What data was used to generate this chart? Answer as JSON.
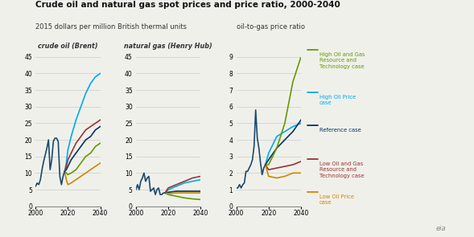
{
  "title": "Crude oil and natural gas spot prices and price ratio, 2000-2040",
  "subtitle_left": "2015 dollars per million British thermal units",
  "subtitle_right": "oil-to-gas price ratio",
  "label1": "crude oil (Brent)",
  "label2": "natural gas (Henry Hub)",
  "colors": {
    "high_oil_price": "#00AAEE",
    "reference": "#003366",
    "high_og_resource": "#669900",
    "low_og_resource": "#993333",
    "low_oil_price": "#CC8800"
  },
  "panel1_ylim": [
    0,
    45
  ],
  "panel2_ylim": [
    0,
    45
  ],
  "panel3_ylim": [
    0,
    9
  ],
  "panel1_yticks": [
    0,
    5,
    10,
    15,
    20,
    25,
    30,
    35,
    40,
    45
  ],
  "panel2_yticks": [
    0,
    5,
    10,
    15,
    20,
    25,
    30,
    35,
    40,
    45
  ],
  "panel3_yticks": [
    0,
    1,
    2,
    3,
    4,
    5,
    6,
    7,
    8,
    9
  ],
  "legend_entries": [
    {
      "label": "High Oil and Gas\nResource and\nTechnology case",
      "color": "#669900"
    },
    {
      "label": "High Oil Price\ncase",
      "color": "#00AAEE"
    },
    {
      "label": "Reference case",
      "color": "#003366"
    },
    {
      "label": "Low Oil and Gas\nResource and\nTechnology case",
      "color": "#993333"
    },
    {
      "label": "Low Oil Price\ncase",
      "color": "#CC8800"
    }
  ],
  "crude_oil": {
    "years_hist": [
      2000,
      2001,
      2002,
      2003,
      2004,
      2005,
      2006,
      2007,
      2008,
      2009,
      2010,
      2011,
      2012,
      2013,
      2014,
      2015,
      2016,
      2017,
      2018
    ],
    "vals_hist": [
      6.0,
      7.0,
      6.5,
      8.0,
      11.0,
      13.5,
      15.5,
      17.5,
      20.0,
      11.0,
      14.0,
      19.5,
      20.5,
      20.5,
      19.5,
      9.0,
      6.5,
      9.0,
      10.5
    ],
    "high_oil_price": {
      "years": [
        2018,
        2019,
        2020,
        2022,
        2025,
        2028,
        2031,
        2034,
        2037,
        2040
      ],
      "vals": [
        10.5,
        13,
        17,
        21,
        26,
        30,
        34,
        37,
        39,
        40
      ]
    },
    "reference": {
      "years": [
        2018,
        2019,
        2020,
        2022,
        2025,
        2028,
        2031,
        2034,
        2037,
        2040
      ],
      "vals": [
        10.5,
        11,
        12,
        14,
        16,
        18,
        20,
        21,
        23,
        24
      ]
    },
    "high_og_resource": {
      "years": [
        2018,
        2019,
        2020,
        2022,
        2025,
        2028,
        2031,
        2034,
        2037,
        2040
      ],
      "vals": [
        10.5,
        10,
        9.5,
        10,
        11,
        13,
        15,
        16,
        18,
        19
      ]
    },
    "low_og_resource": {
      "years": [
        2018,
        2019,
        2020,
        2022,
        2025,
        2028,
        2031,
        2034,
        2037,
        2040
      ],
      "vals": [
        10.5,
        12,
        14,
        16,
        19,
        21,
        23,
        24,
        25,
        26
      ]
    },
    "low_oil_price": {
      "years": [
        2018,
        2019,
        2020,
        2022,
        2025,
        2028,
        2031,
        2034,
        2037,
        2040
      ],
      "vals": [
        10.5,
        8,
        6.5,
        7,
        8,
        9,
        10,
        11,
        12,
        13
      ]
    }
  },
  "nat_gas": {
    "years_hist": [
      2000,
      2001,
      2002,
      2003,
      2004,
      2005,
      2006,
      2007,
      2008,
      2009,
      2010,
      2011,
      2012,
      2013,
      2014,
      2015,
      2016,
      2017,
      2018
    ],
    "vals_hist": [
      5.0,
      6.5,
      5.0,
      7.5,
      8.5,
      10.0,
      7.5,
      8.5,
      9.0,
      4.5,
      5.0,
      5.5,
      3.5,
      5.0,
      5.5,
      3.5,
      3.5,
      4.0,
      4.0
    ],
    "high_oil_price": {
      "years": [
        2018,
        2020,
        2025,
        2030,
        2035,
        2040
      ],
      "vals": [
        4.0,
        5.0,
        6.0,
        7.0,
        7.5,
        8.0
      ]
    },
    "reference": {
      "years": [
        2018,
        2020,
        2025,
        2030,
        2035,
        2040
      ],
      "vals": [
        4.0,
        4.2,
        4.5,
        4.5,
        4.5,
        4.5
      ]
    },
    "high_og_resource": {
      "years": [
        2018,
        2020,
        2025,
        2030,
        2035,
        2040
      ],
      "vals": [
        4.0,
        3.5,
        3.0,
        2.5,
        2.2,
        2.0
      ]
    },
    "low_og_resource": {
      "years": [
        2018,
        2020,
        2025,
        2030,
        2035,
        2040
      ],
      "vals": [
        4.0,
        5.5,
        6.5,
        7.5,
        8.5,
        9.0
      ]
    },
    "low_oil_price": {
      "years": [
        2018,
        2020,
        2025,
        2030,
        2035,
        2040
      ],
      "vals": [
        4.0,
        3.8,
        4.0,
        4.0,
        4.0,
        4.0
      ]
    }
  },
  "ratio": {
    "years_hist": [
      2000,
      2001,
      2002,
      2003,
      2004,
      2005,
      2006,
      2007,
      2008,
      2009,
      2010,
      2011,
      2012,
      2013,
      2014,
      2015,
      2016,
      2017,
      2018
    ],
    "vals_hist": [
      1.1,
      1.1,
      1.3,
      1.1,
      1.3,
      1.4,
      2.1,
      2.1,
      2.3,
      2.5,
      2.8,
      3.6,
      5.8,
      4.1,
      3.5,
      2.6,
      1.9,
      2.3,
      2.5
    ],
    "high_oil_price": {
      "years": [
        2018,
        2020,
        2025,
        2030,
        2035,
        2040
      ],
      "vals": [
        2.5,
        3.2,
        4.2,
        4.5,
        4.8,
        5.0
      ]
    },
    "reference": {
      "years": [
        2018,
        2020,
        2025,
        2030,
        2035,
        2040
      ],
      "vals": [
        2.5,
        2.8,
        3.5,
        4.0,
        4.5,
        5.2
      ]
    },
    "high_og_resource": {
      "years": [
        2018,
        2020,
        2025,
        2030,
        2035,
        2040
      ],
      "vals": [
        2.5,
        2.5,
        3.5,
        5.0,
        7.5,
        9.0
      ]
    },
    "low_og_resource": {
      "years": [
        2018,
        2020,
        2025,
        2030,
        2035,
        2040
      ],
      "vals": [
        2.5,
        2.2,
        2.3,
        2.4,
        2.5,
        2.7
      ]
    },
    "low_oil_price": {
      "years": [
        2018,
        2020,
        2025,
        2030,
        2035,
        2040
      ],
      "vals": [
        2.5,
        1.8,
        1.7,
        1.8,
        2.0,
        2.0
      ]
    }
  },
  "bg_color": "#f0f0eb",
  "grid_color": "#cccccc",
  "hist_color": "#1a4a6e"
}
